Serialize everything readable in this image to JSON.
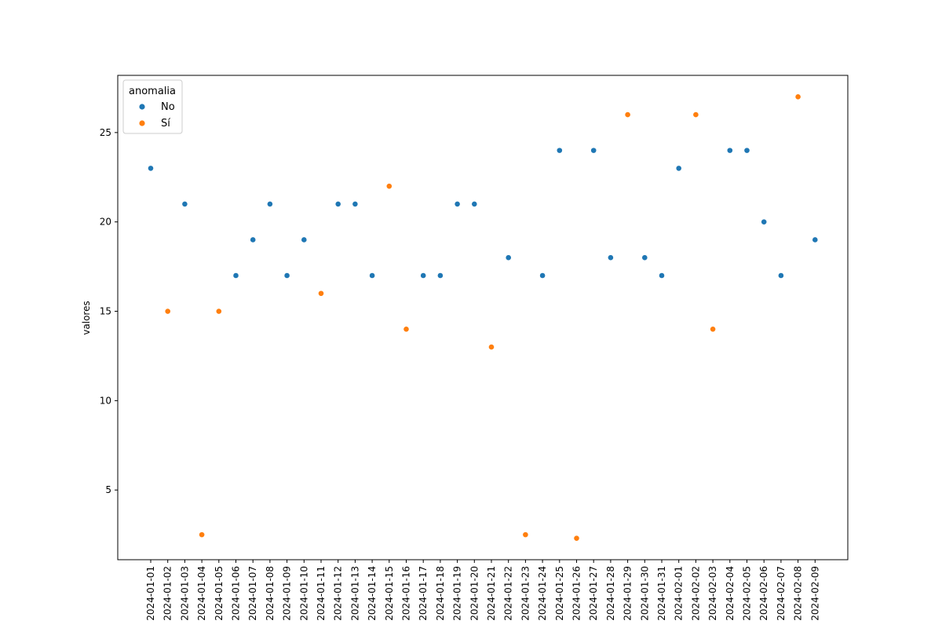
{
  "chart_data": {
    "type": "scatter",
    "title": "",
    "xlabel": "",
    "ylabel": "valores",
    "ylim": [
      1.1,
      28.2
    ],
    "yticks": [
      5,
      10,
      15,
      20,
      25
    ],
    "grid": false,
    "legend": {
      "title": "anomalia",
      "placement": "top-left"
    },
    "x": [
      "2024-01-01",
      "2024-01-02",
      "2024-01-03",
      "2024-01-04",
      "2024-01-05",
      "2024-01-06",
      "2024-01-07",
      "2024-01-08",
      "2024-01-09",
      "2024-01-10",
      "2024-01-11",
      "2024-01-12",
      "2024-01-13",
      "2024-01-14",
      "2024-01-15",
      "2024-01-16",
      "2024-01-17",
      "2024-01-18",
      "2024-01-19",
      "2024-01-20",
      "2024-01-21",
      "2024-01-22",
      "2024-01-23",
      "2024-01-24",
      "2024-01-25",
      "2024-01-26",
      "2024-01-27",
      "2024-01-28",
      "2024-01-29",
      "2024-01-30",
      "2024-01-31",
      "2024-02-01",
      "2024-02-02",
      "2024-02-03",
      "2024-02-04",
      "2024-02-05",
      "2024-02-06",
      "2024-02-07",
      "2024-02-08",
      "2024-02-09"
    ],
    "series": [
      {
        "name": "No",
        "color": "#1f77b4",
        "points": [
          {
            "x": "2024-01-01",
            "y": 23
          },
          {
            "x": "2024-01-03",
            "y": 21
          },
          {
            "x": "2024-01-06",
            "y": 17
          },
          {
            "x": "2024-01-07",
            "y": 19
          },
          {
            "x": "2024-01-08",
            "y": 21
          },
          {
            "x": "2024-01-09",
            "y": 17
          },
          {
            "x": "2024-01-10",
            "y": 19
          },
          {
            "x": "2024-01-12",
            "y": 21
          },
          {
            "x": "2024-01-13",
            "y": 21
          },
          {
            "x": "2024-01-14",
            "y": 17
          },
          {
            "x": "2024-01-17",
            "y": 17
          },
          {
            "x": "2024-01-18",
            "y": 17
          },
          {
            "x": "2024-01-19",
            "y": 21
          },
          {
            "x": "2024-01-20",
            "y": 21
          },
          {
            "x": "2024-01-22",
            "y": 18
          },
          {
            "x": "2024-01-24",
            "y": 17
          },
          {
            "x": "2024-01-25",
            "y": 24
          },
          {
            "x": "2024-01-27",
            "y": 24
          },
          {
            "x": "2024-01-28",
            "y": 18
          },
          {
            "x": "2024-01-30",
            "y": 18
          },
          {
            "x": "2024-01-31",
            "y": 17
          },
          {
            "x": "2024-02-01",
            "y": 23
          },
          {
            "x": "2024-02-04",
            "y": 24
          },
          {
            "x": "2024-02-05",
            "y": 24
          },
          {
            "x": "2024-02-06",
            "y": 20
          },
          {
            "x": "2024-02-07",
            "y": 17
          },
          {
            "x": "2024-02-09",
            "y": 19
          }
        ]
      },
      {
        "name": "Sí",
        "color": "#ff7f0e",
        "points": [
          {
            "x": "2024-01-02",
            "y": 15
          },
          {
            "x": "2024-01-04",
            "y": 2.5
          },
          {
            "x": "2024-01-05",
            "y": 15
          },
          {
            "x": "2024-01-11",
            "y": 16
          },
          {
            "x": "2024-01-15",
            "y": 22
          },
          {
            "x": "2024-01-16",
            "y": 14
          },
          {
            "x": "2024-01-21",
            "y": 13
          },
          {
            "x": "2024-01-23",
            "y": 2.5
          },
          {
            "x": "2024-01-26",
            "y": 2.3
          },
          {
            "x": "2024-01-29",
            "y": 26
          },
          {
            "x": "2024-02-02",
            "y": 26
          },
          {
            "x": "2024-02-03",
            "y": 14
          },
          {
            "x": "2024-02-08",
            "y": 27
          }
        ]
      }
    ]
  }
}
